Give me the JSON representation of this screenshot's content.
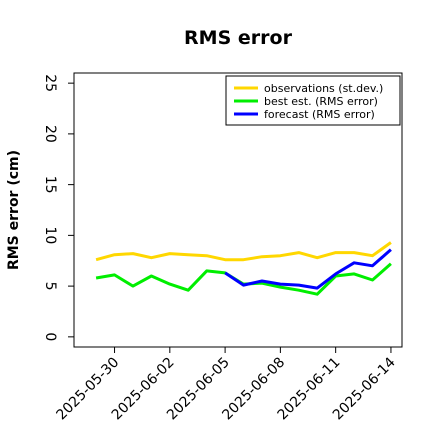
{
  "chart_data": {
    "type": "line",
    "title": "RMS error",
    "xlabel": "",
    "ylabel": "RMS error (cm)",
    "ylim": [
      -1,
      26
    ],
    "yticks": [
      0,
      5,
      10,
      15,
      20,
      25
    ],
    "x_start": "2025-05-29",
    "x_range_days": [
      -1.2,
      16.6
    ],
    "xticks": [
      {
        "label": "2025-05-30",
        "day": 1,
        "color": "#000000"
      },
      {
        "label": "2025-06-02",
        "day": 4,
        "color": "#000000"
      },
      {
        "label": "2025-06-05",
        "day": 7,
        "color": "#228b22"
      },
      {
        "label": "2025-06-08",
        "day": 10,
        "color": "#000000"
      },
      {
        "label": "2025-06-11",
        "day": 13,
        "color": "#000000"
      },
      {
        "label": "2025-06-14",
        "day": 16,
        "color": "#000000"
      }
    ],
    "grid": false,
    "legend_position": "top-right",
    "series": [
      {
        "name": "observations (st.dev.)",
        "color": "#ffd700",
        "x": [
          "2025-05-29",
          "2025-05-30",
          "2025-05-31",
          "2025-06-01",
          "2025-06-02",
          "2025-06-03",
          "2025-06-04",
          "2025-06-05",
          "2025-06-06",
          "2025-06-07",
          "2025-06-08",
          "2025-06-09",
          "2025-06-10",
          "2025-06-11",
          "2025-06-12",
          "2025-06-13",
          "2025-06-14"
        ],
        "values": [
          7.6,
          8.1,
          8.2,
          7.8,
          8.2,
          8.1,
          8.0,
          7.6,
          7.6,
          7.9,
          8.0,
          8.3,
          7.8,
          8.3,
          8.3,
          8.0,
          9.3
        ]
      },
      {
        "name": "best est. (RMS error)",
        "color": "#00ee00",
        "x": [
          "2025-05-29",
          "2025-05-30",
          "2025-05-31",
          "2025-06-01",
          "2025-06-02",
          "2025-06-03",
          "2025-06-04",
          "2025-06-05",
          "2025-06-06",
          "2025-06-07",
          "2025-06-08",
          "2025-06-09",
          "2025-06-10",
          "2025-06-11",
          "2025-06-12",
          "2025-06-13",
          "2025-06-14"
        ],
        "values": [
          5.8,
          6.1,
          5.0,
          6.0,
          5.2,
          4.6,
          6.5,
          6.3,
          5.2,
          5.3,
          4.9,
          4.6,
          4.2,
          6.0,
          6.2,
          5.6,
          7.2
        ]
      },
      {
        "name": "forecast (RMS error)",
        "color": "#0000ff",
        "x": [
          "2025-06-05",
          "2025-06-06",
          "2025-06-07",
          "2025-06-08",
          "2025-06-09",
          "2025-06-10",
          "2025-06-11",
          "2025-06-12",
          "2025-06-13",
          "2025-06-14"
        ],
        "values": [
          6.3,
          5.1,
          5.5,
          5.2,
          5.1,
          4.8,
          6.2,
          7.3,
          7.0,
          8.6
        ]
      }
    ]
  }
}
